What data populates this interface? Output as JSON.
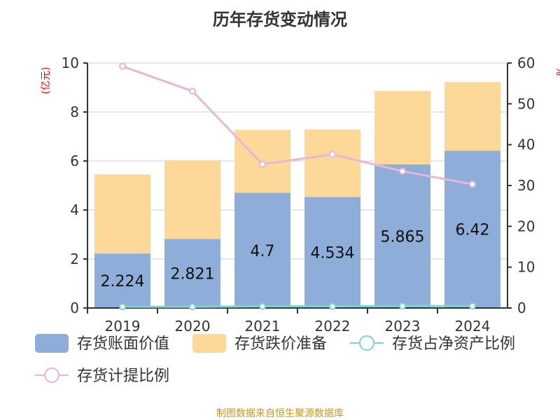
{
  "chart_data": {
    "type": "bar",
    "title": "历年存货变动情况",
    "categories": [
      "2019",
      "2020",
      "2021",
      "2022",
      "2023",
      "2024"
    ],
    "ylabel_left": "(亿元)",
    "ylabel_right": "%",
    "ylim_left": [
      0,
      10
    ],
    "ylim_right": [
      0,
      60
    ],
    "yticks_left": [
      0,
      2,
      4,
      6,
      8,
      10
    ],
    "yticks_right": [
      0,
      10,
      20,
      30,
      40,
      50,
      60
    ],
    "grid": true,
    "legend_position": "bottom",
    "series": [
      {
        "name": "存货账面价值",
        "kind": "bar",
        "axis": "left",
        "color": "#8eadd9",
        "values": [
          2.224,
          2.821,
          4.7,
          4.534,
          5.865,
          6.42
        ],
        "labels": [
          "2.224",
          "2.821",
          "4.7",
          "4.534",
          "5.865",
          "6.42"
        ]
      },
      {
        "name": "存货跌价准备",
        "kind": "bar",
        "axis": "left",
        "color": "#fed899",
        "values": [
          3.23,
          3.21,
          2.57,
          2.76,
          2.99,
          2.8
        ]
      },
      {
        "name": "存货占净资产比例",
        "kind": "line",
        "axis": "right",
        "color": "#7fd3d3",
        "values": [
          0.3,
          0.3,
          0.4,
          0.4,
          0.5,
          0.5
        ]
      },
      {
        "name": "存货计提比例",
        "kind": "line",
        "axis": "right",
        "color": "#e6b7d6",
        "values": [
          59.2,
          53.1,
          35.2,
          37.6,
          33.5,
          30.3
        ]
      }
    ]
  },
  "source": "制图数据来自恒生聚源数据库"
}
